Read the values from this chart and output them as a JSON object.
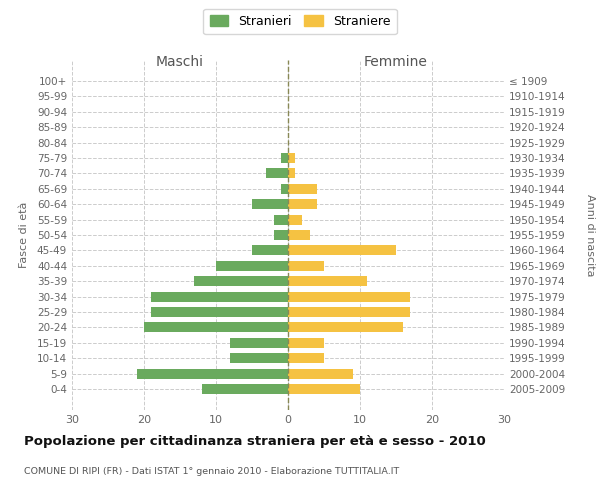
{
  "age_groups": [
    "100+",
    "95-99",
    "90-94",
    "85-89",
    "80-84",
    "75-79",
    "70-74",
    "65-69",
    "60-64",
    "55-59",
    "50-54",
    "45-49",
    "40-44",
    "35-39",
    "30-34",
    "25-29",
    "20-24",
    "15-19",
    "10-14",
    "5-9",
    "0-4"
  ],
  "birth_years": [
    "≤ 1909",
    "1910-1914",
    "1915-1919",
    "1920-1924",
    "1925-1929",
    "1930-1934",
    "1935-1939",
    "1940-1944",
    "1945-1949",
    "1950-1954",
    "1955-1959",
    "1960-1964",
    "1965-1969",
    "1970-1974",
    "1975-1979",
    "1980-1984",
    "1985-1989",
    "1990-1994",
    "1995-1999",
    "2000-2004",
    "2005-2009"
  ],
  "maschi": [
    0,
    0,
    0,
    0,
    0,
    1,
    3,
    1,
    5,
    2,
    2,
    5,
    10,
    13,
    19,
    19,
    20,
    8,
    8,
    21,
    12
  ],
  "femmine": [
    0,
    0,
    0,
    0,
    0,
    1,
    1,
    4,
    4,
    2,
    3,
    15,
    5,
    11,
    17,
    17,
    16,
    5,
    5,
    9,
    10
  ],
  "color_maschi": "#6aaa5e",
  "color_femmine": "#f5c242",
  "title": "Popolazione per cittadinanza straniera per età e sesso - 2010",
  "subtitle": "COMUNE DI RIPI (FR) - Dati ISTAT 1° gennaio 2010 - Elaborazione TUTTITALIA.IT",
  "xlabel_left": "Maschi",
  "xlabel_right": "Femmine",
  "ylabel_left": "Fasce di età",
  "ylabel_right": "Anni di nascita",
  "legend_maschi": "Stranieri",
  "legend_femmine": "Straniere",
  "xlim": 30,
  "background_color": "#ffffff",
  "grid_color": "#cccccc"
}
